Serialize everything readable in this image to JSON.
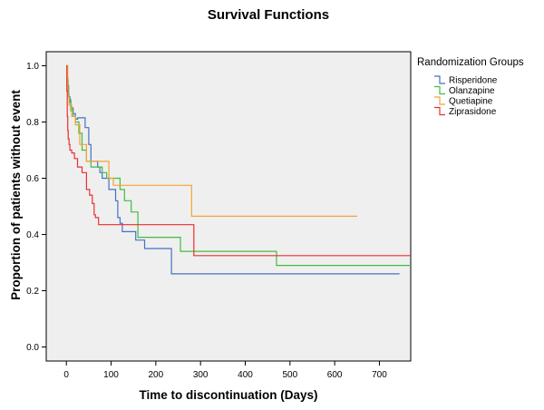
{
  "chart_data": {
    "type": "line",
    "title": "Survival Functions",
    "xlabel": "Time to discontinuation (Days)",
    "ylabel": "Proportion of patients without event",
    "xlim": [
      -45,
      770
    ],
    "ylim": [
      -0.05,
      1.05
    ],
    "xticks": [
      0,
      100,
      200,
      300,
      400,
      500,
      600,
      700
    ],
    "yticks": [
      0.0,
      0.2,
      0.4,
      0.6,
      0.8,
      1.0
    ],
    "ytick_labels": [
      "0.0",
      "0.2",
      "0.4",
      "0.6",
      "0.8",
      "1.0"
    ],
    "legend": {
      "title": "Randomization Groups",
      "position": "right"
    },
    "series": [
      {
        "name": "Risperidone",
        "color": "#4472c4",
        "x": [
          0,
          2,
          3,
          5,
          8,
          10,
          15,
          20,
          25,
          35,
          42,
          50,
          55,
          62,
          70,
          75,
          80,
          95,
          110,
          115,
          120,
          125,
          135,
          155,
          175,
          235,
          745
        ],
        "y": [
          1.0,
          0.96,
          0.93,
          0.89,
          0.87,
          0.85,
          0.83,
          0.81,
          0.815,
          0.815,
          0.78,
          0.72,
          0.66,
          0.66,
          0.64,
          0.62,
          0.6,
          0.56,
          0.52,
          0.46,
          0.44,
          0.41,
          0.41,
          0.38,
          0.35,
          0.26,
          0.26
        ]
      },
      {
        "name": "Olanzapine",
        "color": "#3fbe3f",
        "x": [
          0,
          2,
          4,
          6,
          10,
          15,
          20,
          28,
          35,
          45,
          55,
          65,
          80,
          90,
          100,
          120,
          130,
          145,
          160,
          255,
          470,
          770
        ],
        "y": [
          1.0,
          0.95,
          0.9,
          0.88,
          0.84,
          0.82,
          0.8,
          0.76,
          0.7,
          0.66,
          0.64,
          0.64,
          0.62,
          0.6,
          0.6,
          0.56,
          0.52,
          0.48,
          0.39,
          0.34,
          0.29,
          0.29
        ]
      },
      {
        "name": "Quetiapine",
        "color": "#f5a233",
        "x": [
          0,
          3,
          6,
          12,
          20,
          30,
          45,
          95,
          105,
          280,
          650
        ],
        "y": [
          1.0,
          0.9,
          0.86,
          0.82,
          0.79,
          0.72,
          0.66,
          0.6,
          0.575,
          0.465,
          0.465
        ]
      },
      {
        "name": "Ziprasidone",
        "color": "#e8312f",
        "x": [
          0,
          1,
          2,
          3,
          4,
          6,
          8,
          12,
          18,
          25,
          35,
          45,
          52,
          58,
          62,
          65,
          72,
          285,
          770
        ],
        "y": [
          1.0,
          0.91,
          0.82,
          0.77,
          0.74,
          0.72,
          0.7,
          0.69,
          0.67,
          0.64,
          0.62,
          0.56,
          0.54,
          0.51,
          0.47,
          0.46,
          0.435,
          0.325,
          0.325
        ]
      }
    ]
  }
}
